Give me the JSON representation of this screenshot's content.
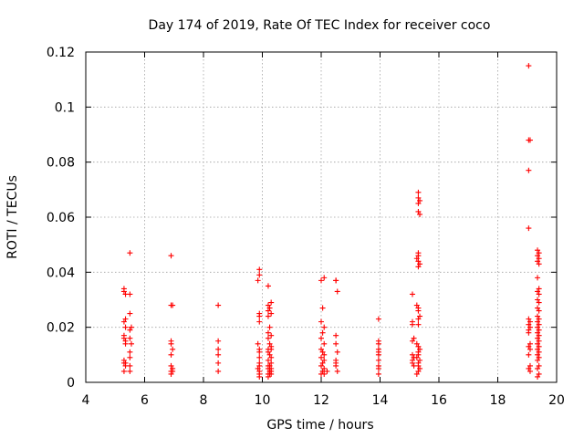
{
  "chart_data": {
    "type": "scatter",
    "title": "Day 174 of 2019, Rate Of TEC Index for receiver coco",
    "xlabel": "GPS time / hours",
    "ylabel": "ROTI / TECUs",
    "xlim": [
      4,
      20
    ],
    "ylim": [
      0,
      0.12
    ],
    "x_ticks": [
      "4",
      "6",
      "8",
      "10",
      "12",
      "14",
      "16",
      "18",
      "20"
    ],
    "y_ticks": [
      "0",
      "0.02",
      "0.04",
      "0.06",
      "0.08",
      "0.1",
      "0.12"
    ],
    "grid": true,
    "marker": "+",
    "color": "#ff0000",
    "series": [
      {
        "name": "ROTI",
        "x": [
          5.3,
          5.3,
          5.35,
          5.35,
          5.3,
          5.3,
          5.35,
          5.35,
          5.3,
          5.35,
          5.35,
          5.3,
          5.3,
          5.35,
          5.3,
          5.5,
          5.5,
          5.5,
          5.55,
          5.5,
          5.5,
          5.55,
          5.5,
          5.5,
          5.5,
          5.5,
          6.9,
          6.9,
          6.95,
          6.9,
          6.9,
          6.95,
          6.9,
          6.9,
          6.95,
          6.9,
          6.95,
          6.9,
          8.5,
          8.5,
          8.5,
          8.5,
          8.5,
          8.5,
          9.9,
          9.9,
          9.85,
          9.9,
          9.9,
          9.9,
          9.85,
          9.9,
          9.9,
          9.9,
          9.9,
          9.9,
          9.85,
          9.9,
          9.9,
          9.9,
          10.2,
          10.3,
          10.2,
          10.25,
          10.2,
          10.3,
          10.2,
          10.25,
          10.2,
          10.3,
          10.2,
          10.25,
          10.3,
          10.2,
          10.3,
          10.2,
          10.25,
          10.3,
          10.2,
          10.3,
          10.25,
          10.2,
          10.3,
          10.2,
          10.3,
          10.25,
          10.2,
          10.3,
          10.25,
          10.2,
          12.0,
          12.1,
          12.05,
          12.0,
          12.1,
          12.05,
          12.0,
          12.1,
          12.0,
          12.05,
          12.1,
          12.0,
          12.1,
          12.05,
          12.0,
          12.1,
          12.2,
          12.05,
          12.0,
          12.1,
          12.5,
          12.5,
          12.55,
          12.5,
          12.5,
          12.55,
          12.5,
          12.5,
          12.5,
          12.55,
          13.95,
          13.95,
          13.95,
          13.95,
          13.95,
          13.95,
          13.95,
          13.95,
          13.95,
          13.95,
          15.1,
          15.1,
          15.1,
          15.15,
          15.1,
          15.1,
          15.15,
          15.1,
          15.1,
          15.15,
          15.3,
          15.3,
          15.35,
          15.3,
          15.3,
          15.35,
          15.3,
          15.3,
          15.25,
          15.3,
          15.35,
          15.3,
          15.25,
          15.3,
          15.3,
          15.35,
          15.3,
          15.3,
          15.25,
          15.3,
          15.35,
          15.3,
          15.3,
          15.25,
          15.35,
          15.3,
          15.3,
          15.35,
          15.3,
          15.25,
          19.05,
          19.1,
          19.05,
          19.05,
          19.05,
          19.05,
          19.1,
          19.05,
          19.1,
          19.05,
          19.05,
          19.1,
          19.05,
          19.1,
          19.05,
          19.1,
          19.05,
          19.1,
          19.35,
          19.4,
          19.35,
          19.4,
          19.35,
          19.4,
          19.35,
          19.4,
          19.35,
          19.4,
          19.35,
          19.4,
          19.35,
          19.4,
          19.35,
          19.4,
          19.35,
          19.4,
          19.35,
          19.4,
          19.35,
          19.4,
          19.35,
          19.4,
          19.35,
          19.4,
          19.35,
          19.4,
          19.35,
          19.4,
          19.35,
          19.4,
          19.35,
          19.4,
          19.35
        ],
        "y": [
          0.034,
          0.033,
          0.032,
          0.023,
          0.022,
          0.016,
          0.015,
          0.014,
          0.008,
          0.007,
          0.006,
          0.004,
          0.007,
          0.02,
          0.017,
          0.047,
          0.032,
          0.025,
          0.02,
          0.019,
          0.016,
          0.014,
          0.011,
          0.009,
          0.006,
          0.004,
          0.046,
          0.028,
          0.028,
          0.015,
          0.014,
          0.012,
          0.01,
          0.006,
          0.005,
          0.004,
          0.004,
          0.003,
          0.028,
          0.015,
          0.012,
          0.01,
          0.007,
          0.004,
          0.041,
          0.039,
          0.037,
          0.025,
          0.024,
          0.022,
          0.014,
          0.012,
          0.011,
          0.009,
          0.007,
          0.006,
          0.005,
          0.004,
          0.003,
          0.002,
          0.035,
          0.029,
          0.028,
          0.027,
          0.026,
          0.025,
          0.024,
          0.02,
          0.018,
          0.017,
          0.016,
          0.014,
          0.013,
          0.012,
          0.012,
          0.011,
          0.01,
          0.009,
          0.008,
          0.007,
          0.006,
          0.006,
          0.005,
          0.005,
          0.004,
          0.004,
          0.003,
          0.003,
          0.003,
          0.002,
          0.037,
          0.038,
          0.027,
          0.022,
          0.02,
          0.018,
          0.016,
          0.014,
          0.012,
          0.011,
          0.01,
          0.009,
          0.008,
          0.007,
          0.006,
          0.005,
          0.004,
          0.004,
          0.003,
          0.003,
          0.037,
          0.037,
          0.033,
          0.017,
          0.014,
          0.011,
          0.008,
          0.007,
          0.006,
          0.004,
          0.023,
          0.015,
          0.014,
          0.012,
          0.011,
          0.01,
          0.008,
          0.006,
          0.005,
          0.003,
          0.032,
          0.022,
          0.021,
          0.016,
          0.015,
          0.01,
          0.009,
          0.008,
          0.007,
          0.006,
          0.069,
          0.067,
          0.066,
          0.065,
          0.062,
          0.061,
          0.047,
          0.046,
          0.045,
          0.044,
          0.043,
          0.042,
          0.028,
          0.027,
          0.026,
          0.024,
          0.023,
          0.021,
          0.014,
          0.013,
          0.012,
          0.011,
          0.01,
          0.009,
          0.008,
          0.007,
          0.006,
          0.005,
          0.004,
          0.003,
          0.115,
          0.088,
          0.088,
          0.077,
          0.056,
          0.023,
          0.022,
          0.021,
          0.02,
          0.019,
          0.018,
          0.014,
          0.013,
          0.012,
          0.01,
          0.006,
          0.005,
          0.004,
          0.048,
          0.047,
          0.046,
          0.045,
          0.044,
          0.043,
          0.038,
          0.034,
          0.033,
          0.032,
          0.03,
          0.029,
          0.027,
          0.026,
          0.024,
          0.023,
          0.022,
          0.021,
          0.02,
          0.019,
          0.018,
          0.017,
          0.016,
          0.015,
          0.014,
          0.013,
          0.012,
          0.011,
          0.01,
          0.009,
          0.008,
          0.006,
          0.005,
          0.003,
          0.002
        ]
      }
    ]
  }
}
